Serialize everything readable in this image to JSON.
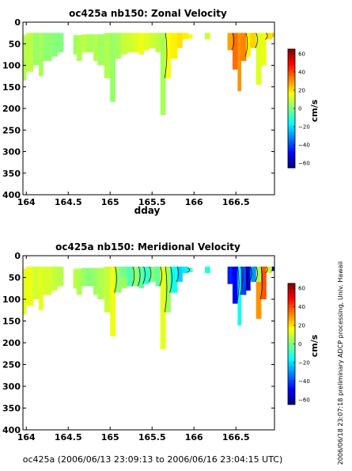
{
  "chart_data": [
    {
      "type": "heatmap",
      "title": "oc425a nb150: Zonal Velocity",
      "xlabel": "dday",
      "ylabel": "",
      "xlim": [
        163.96,
        166.96
      ],
      "ylim": [
        400,
        0
      ],
      "y_reversed": true,
      "xticks": [
        164,
        164.5,
        165,
        165.5,
        166,
        166.5
      ],
      "xtick_labels": [
        "164",
        "164.5",
        "165",
        "165.5",
        "166",
        "166.5"
      ],
      "yticks": [
        0,
        50,
        100,
        150,
        200,
        250,
        300,
        350,
        400
      ],
      "ytick_labels": [
        "0",
        "50",
        "100",
        "150",
        "200",
        "250",
        "300",
        "350",
        "400"
      ],
      "colorbar": {
        "label": "cm/s",
        "range": [
          -65,
          65
        ],
        "ticks": [
          60,
          40,
          20,
          0,
          -20,
          -40,
          -60
        ],
        "tick_labels": [
          "60",
          "40",
          "20",
          "0",
          "−20",
          "−40",
          "−60"
        ],
        "colormap": "jet"
      },
      "columns": [
        {
          "x0": 163.96,
          "x1": 164.0,
          "bottom": 135,
          "segments": [
            [
              30,
              135,
              6
            ]
          ]
        },
        {
          "x0": 164.0,
          "x1": 164.08,
          "bottom": 115,
          "segments": [
            [
              25,
              115,
              8
            ]
          ]
        },
        {
          "x0": 164.08,
          "x1": 164.15,
          "bottom": 100,
          "segments": [
            [
              25,
              100,
              3
            ]
          ]
        },
        {
          "x0": 164.15,
          "x1": 164.2,
          "bottom": 125,
          "segments": [
            [
              25,
              125,
              5
            ]
          ]
        },
        {
          "x0": 164.2,
          "x1": 164.3,
          "bottom": 90,
          "segments": [
            [
              25,
              90,
              2
            ]
          ]
        },
        {
          "x0": 164.3,
          "x1": 164.37,
          "bottom": 80,
          "segments": [
            [
              25,
              80,
              1
            ]
          ]
        },
        {
          "x0": 164.37,
          "x1": 164.44,
          "bottom": 70,
          "segments": [
            [
              25,
              70,
              0
            ]
          ]
        },
        {
          "x0": 164.56,
          "x1": 164.6,
          "bottom": 75,
          "segments": [
            [
              30,
              75,
              4
            ]
          ]
        },
        {
          "x0": 164.6,
          "x1": 164.66,
          "bottom": 90,
          "segments": [
            [
              30,
              90,
              6
            ]
          ]
        },
        {
          "x0": 164.66,
          "x1": 164.72,
          "bottom": 70,
          "segments": [
            [
              28,
              70,
              8
            ]
          ]
        },
        {
          "x0": 164.72,
          "x1": 164.8,
          "bottom": 70,
          "segments": [
            [
              28,
              70,
              5
            ]
          ]
        },
        {
          "x0": 164.8,
          "x1": 164.85,
          "bottom": 90,
          "segments": [
            [
              28,
              90,
              7
            ]
          ]
        },
        {
          "x0": 164.85,
          "x1": 164.93,
          "bottom": 100,
          "segments": [
            [
              28,
              100,
              4
            ]
          ]
        },
        {
          "x0": 164.93,
          "x1": 165.0,
          "bottom": 130,
          "segments": [
            [
              25,
              130,
              6
            ]
          ]
        },
        {
          "x0": 165.0,
          "x1": 165.06,
          "bottom": 185,
          "segments": [
            [
              25,
              185,
              3
            ]
          ]
        },
        {
          "x0": 165.06,
          "x1": 165.13,
          "bottom": 85,
          "segments": [
            [
              25,
              85,
              5
            ]
          ]
        },
        {
          "x0": 165.13,
          "x1": 165.2,
          "bottom": 75,
          "segments": [
            [
              25,
              75,
              9
            ]
          ]
        },
        {
          "x0": 165.2,
          "x1": 165.27,
          "bottom": 70,
          "segments": [
            [
              25,
              70,
              10
            ]
          ]
        },
        {
          "x0": 165.27,
          "x1": 165.34,
          "bottom": 70,
          "segments": [
            [
              25,
              70,
              12
            ]
          ]
        },
        {
          "x0": 165.34,
          "x1": 165.4,
          "bottom": 75,
          "segments": [
            [
              25,
              75,
              14
            ]
          ]
        },
        {
          "x0": 165.4,
          "x1": 165.47,
          "bottom": 65,
          "segments": [
            [
              25,
              65,
              12
            ]
          ]
        },
        {
          "x0": 165.47,
          "x1": 165.54,
          "bottom": 60,
          "segments": [
            [
              25,
              60,
              10
            ]
          ]
        },
        {
          "x0": 165.54,
          "x1": 165.6,
          "bottom": 70,
          "segments": [
            [
              25,
              70,
              8
            ]
          ]
        },
        {
          "x0": 165.6,
          "x1": 165.66,
          "bottom": 215,
          "segments": [
            [
              25,
              215,
              5
            ]
          ]
        },
        {
          "x0": 165.66,
          "x1": 165.72,
          "bottom": 130,
          "segments": [
            [
              25,
              130,
              15
            ]
          ]
        },
        {
          "x0": 165.72,
          "x1": 165.8,
          "bottom": 85,
          "segments": [
            [
              25,
              85,
              18
            ]
          ]
        },
        {
          "x0": 165.8,
          "x1": 165.86,
          "bottom": 60,
          "segments": [
            [
              25,
              60,
              20
            ]
          ]
        },
        {
          "x0": 165.86,
          "x1": 165.93,
          "bottom": 40,
          "segments": [
            [
              25,
              40,
              18
            ]
          ]
        },
        {
          "x0": 165.93,
          "x1": 165.98,
          "bottom": 38,
          "segments": [
            [
              28,
              38,
              15
            ]
          ]
        },
        {
          "x0": 166.13,
          "x1": 166.19,
          "bottom": 40,
          "segments": [
            [
              25,
              40,
              10
            ]
          ]
        },
        {
          "x0": 166.4,
          "x1": 166.46,
          "bottom": 65,
          "segments": [
            [
              25,
              65,
              28
            ]
          ]
        },
        {
          "x0": 166.46,
          "x1": 166.52,
          "bottom": 110,
          "segments": [
            [
              25,
              110,
              35
            ]
          ]
        },
        {
          "x0": 166.52,
          "x1": 166.56,
          "bottom": 160,
          "segments": [
            [
              25,
              160,
              30
            ]
          ]
        },
        {
          "x0": 166.56,
          "x1": 166.62,
          "bottom": 90,
          "segments": [
            [
              25,
              90,
              32
            ]
          ]
        },
        {
          "x0": 166.62,
          "x1": 166.67,
          "bottom": 80,
          "segments": [
            [
              25,
              80,
              18
            ]
          ]
        },
        {
          "x0": 166.67,
          "x1": 166.74,
          "bottom": 60,
          "segments": [
            [
              25,
              60,
              22
            ]
          ]
        },
        {
          "x0": 166.74,
          "x1": 166.8,
          "bottom": 145,
          "segments": [
            [
              25,
              145,
              12
            ]
          ]
        },
        {
          "x0": 166.8,
          "x1": 166.86,
          "bottom": 100,
          "segments": [
            [
              25,
              100,
              14
            ]
          ]
        },
        {
          "x0": 166.86,
          "x1": 166.93,
          "bottom": 40,
          "segments": [
            [
              25,
              40,
              20
            ]
          ]
        },
        {
          "x0": 166.93,
          "x1": 166.96,
          "bottom": 35,
          "segments": [
            [
              25,
              35,
              24
            ]
          ]
        }
      ]
    },
    {
      "type": "heatmap",
      "title": "oc425a nb150: Meridional Velocity",
      "xlabel": "",
      "ylabel": "",
      "xlim": [
        163.96,
        166.96
      ],
      "ylim": [
        400,
        0
      ],
      "y_reversed": true,
      "xticks": [
        164,
        164.5,
        165,
        165.5,
        166,
        166.5
      ],
      "xtick_labels": [
        "164",
        "164.5",
        "165",
        "165.5",
        "166",
        "166.5"
      ],
      "yticks": [
        0,
        50,
        100,
        150,
        200,
        250,
        300,
        350,
        400
      ],
      "ytick_labels": [
        "0",
        "50",
        "100",
        "150",
        "200",
        "250",
        "300",
        "350",
        "400"
      ],
      "colorbar": {
        "label": "cm/s",
        "range": [
          -65,
          65
        ],
        "ticks": [
          60,
          40,
          20,
          0,
          -20,
          -40,
          -60
        ],
        "tick_labels": [
          "60",
          "40",
          "20",
          "0",
          "−20",
          "−40",
          "−60"
        ],
        "colormap": "jet"
      },
      "columns": [
        {
          "x0": 163.96,
          "x1": 164.0,
          "bottom": 135,
          "segments": [
            [
              30,
              135,
              12
            ]
          ]
        },
        {
          "x0": 164.0,
          "x1": 164.08,
          "bottom": 115,
          "segments": [
            [
              25,
              115,
              14
            ]
          ]
        },
        {
          "x0": 164.08,
          "x1": 164.15,
          "bottom": 100,
          "segments": [
            [
              25,
              100,
              10
            ]
          ]
        },
        {
          "x0": 164.15,
          "x1": 164.2,
          "bottom": 125,
          "segments": [
            [
              25,
              125,
              13
            ]
          ]
        },
        {
          "x0": 164.2,
          "x1": 164.3,
          "bottom": 90,
          "segments": [
            [
              25,
              90,
              11
            ]
          ]
        },
        {
          "x0": 164.3,
          "x1": 164.37,
          "bottom": 80,
          "segments": [
            [
              25,
              80,
              9
            ]
          ]
        },
        {
          "x0": 164.37,
          "x1": 164.44,
          "bottom": 70,
          "segments": [
            [
              25,
              70,
              7
            ]
          ]
        },
        {
          "x0": 164.56,
          "x1": 164.6,
          "bottom": 75,
          "segments": [
            [
              30,
              75,
              8
            ]
          ]
        },
        {
          "x0": 164.6,
          "x1": 164.66,
          "bottom": 90,
          "segments": [
            [
              30,
              90,
              6
            ]
          ]
        },
        {
          "x0": 164.66,
          "x1": 164.72,
          "bottom": 70,
          "segments": [
            [
              28,
              70,
              3
            ]
          ]
        },
        {
          "x0": 164.72,
          "x1": 164.8,
          "bottom": 70,
          "segments": [
            [
              28,
              70,
              1
            ]
          ]
        },
        {
          "x0": 164.8,
          "x1": 164.85,
          "bottom": 90,
          "segments": [
            [
              28,
              90,
              4
            ]
          ]
        },
        {
          "x0": 164.85,
          "x1": 164.93,
          "bottom": 100,
          "segments": [
            [
              28,
              100,
              6
            ]
          ]
        },
        {
          "x0": 164.93,
          "x1": 165.0,
          "bottom": 130,
          "segments": [
            [
              25,
              130,
              9
            ]
          ]
        },
        {
          "x0": 165.0,
          "x1": 165.06,
          "bottom": 185,
          "segments": [
            [
              25,
              185,
              14
            ]
          ]
        },
        {
          "x0": 165.06,
          "x1": 165.13,
          "bottom": 85,
          "segments": [
            [
              25,
              85,
              2
            ]
          ]
        },
        {
          "x0": 165.13,
          "x1": 165.2,
          "bottom": 75,
          "segments": [
            [
              25,
              50,
              -2
            ],
            [
              50,
              75,
              4
            ]
          ]
        },
        {
          "x0": 165.2,
          "x1": 165.27,
          "bottom": 70,
          "segments": [
            [
              25,
              70,
              -6
            ]
          ]
        },
        {
          "x0": 165.27,
          "x1": 165.34,
          "bottom": 70,
          "segments": [
            [
              25,
              70,
              2
            ]
          ]
        },
        {
          "x0": 165.34,
          "x1": 165.4,
          "bottom": 75,
          "segments": [
            [
              25,
              75,
              -4
            ]
          ]
        },
        {
          "x0": 165.4,
          "x1": 165.47,
          "bottom": 65,
          "segments": [
            [
              25,
              65,
              -10
            ]
          ]
        },
        {
          "x0": 165.47,
          "x1": 165.54,
          "bottom": 60,
          "segments": [
            [
              25,
              60,
              0
            ]
          ]
        },
        {
          "x0": 165.54,
          "x1": 165.6,
          "bottom": 70,
          "segments": [
            [
              25,
              70,
              -3
            ]
          ]
        },
        {
          "x0": 165.6,
          "x1": 165.66,
          "bottom": 215,
          "segments": [
            [
              25,
              215,
              13
            ]
          ]
        },
        {
          "x0": 165.66,
          "x1": 165.72,
          "bottom": 130,
          "segments": [
            [
              25,
              130,
              4
            ]
          ]
        },
        {
          "x0": 165.72,
          "x1": 165.8,
          "bottom": 85,
          "segments": [
            [
              25,
              85,
              -14
            ]
          ]
        },
        {
          "x0": 165.8,
          "x1": 165.86,
          "bottom": 60,
          "segments": [
            [
              25,
              60,
              -22
            ]
          ]
        },
        {
          "x0": 165.86,
          "x1": 165.93,
          "bottom": 40,
          "segments": [
            [
              25,
              40,
              -18
            ]
          ]
        },
        {
          "x0": 165.93,
          "x1": 165.98,
          "bottom": 38,
          "segments": [
            [
              28,
              38,
              -8
            ]
          ]
        },
        {
          "x0": 166.13,
          "x1": 166.19,
          "bottom": 40,
          "segments": [
            [
              25,
              40,
              -12
            ]
          ]
        },
        {
          "x0": 166.4,
          "x1": 166.46,
          "bottom": 65,
          "segments": [
            [
              25,
              65,
              -45
            ]
          ]
        },
        {
          "x0": 166.46,
          "x1": 166.52,
          "bottom": 110,
          "segments": [
            [
              25,
              110,
              -50
            ]
          ]
        },
        {
          "x0": 166.52,
          "x1": 166.56,
          "bottom": 160,
          "segments": [
            [
              25,
              160,
              -15
            ]
          ]
        },
        {
          "x0": 166.56,
          "x1": 166.62,
          "bottom": 90,
          "segments": [
            [
              25,
              90,
              -40
            ]
          ]
        },
        {
          "x0": 166.62,
          "x1": 166.67,
          "bottom": 80,
          "segments": [
            [
              25,
              80,
              -55
            ]
          ]
        },
        {
          "x0": 166.67,
          "x1": 166.74,
          "bottom": 60,
          "segments": [
            [
              25,
              60,
              -30
            ]
          ]
        },
        {
          "x0": 166.74,
          "x1": 166.8,
          "bottom": 145,
          "segments": [
            [
              25,
              60,
              5
            ],
            [
              60,
              145,
              30
            ]
          ]
        },
        {
          "x0": 166.8,
          "x1": 166.86,
          "bottom": 100,
          "segments": [
            [
              25,
              100,
              38
            ]
          ]
        },
        {
          "x0": 166.86,
          "x1": 166.93,
          "bottom": 40,
          "segments": [
            [
              25,
              40,
              10
            ]
          ]
        },
        {
          "x0": 166.93,
          "x1": 166.96,
          "bottom": 35,
          "segments": [
            [
              25,
              35,
              -55
            ]
          ]
        }
      ]
    }
  ],
  "annotations": {
    "processing_note": "preliminary ADCP processing,  Univ. Hawaii",
    "timestamp": "2006/06/18 23:07:18",
    "footer": "oc425a (2006/06/13 23:09:13 to 2006/06/16 23:04:15 UTC)"
  }
}
